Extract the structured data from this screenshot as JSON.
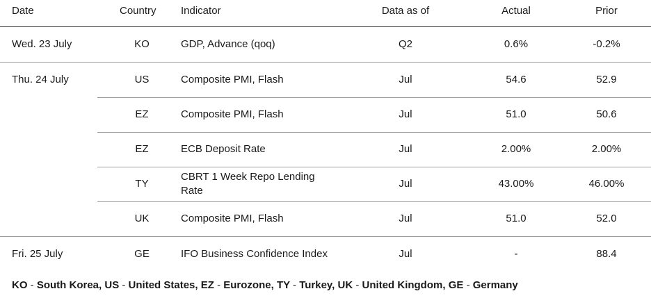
{
  "headers": {
    "date": "Date",
    "country": "Country",
    "indicator": "Indicator",
    "data_as_of": "Data as of",
    "actual": "Actual",
    "prior": "Prior"
  },
  "rows": [
    {
      "date": "Wed. 23 July",
      "country": "KO",
      "indicator": "GDP, Advance (qoq)",
      "data_as_of": "Q2",
      "actual": "0.6%",
      "prior": "-0.2%"
    },
    {
      "date": "Thu. 24 July",
      "country": "US",
      "indicator": "Composite PMI, Flash",
      "data_as_of": "Jul",
      "actual": "54.6",
      "prior": "52.9"
    },
    {
      "date": "",
      "country": "EZ",
      "indicator": "Composite PMI, Flash",
      "data_as_of": "Jul",
      "actual": "51.0",
      "prior": "50.6"
    },
    {
      "date": "",
      "country": "EZ",
      "indicator": "ECB Deposit Rate",
      "data_as_of": "Jul",
      "actual": "2.00%",
      "prior": "2.00%"
    },
    {
      "date": "",
      "country": "TY",
      "indicator_line1": "CBRT 1 Week Repo Lending",
      "indicator_line2": "Rate",
      "data_as_of": "Jul",
      "actual": "43.00%",
      "prior": "46.00%"
    },
    {
      "date": "",
      "country": "UK",
      "indicator": "Composite PMI, Flash",
      "data_as_of": "Jul",
      "actual": "51.0",
      "prior": "52.0"
    },
    {
      "date": "Fri. 25 July",
      "country": "GE",
      "indicator": "IFO Business Confidence Index",
      "data_as_of": "Jul",
      "actual": "-",
      "prior": "88.4"
    }
  ],
  "footnote": {
    "ko": "KO",
    "ko_name": "South Korea,",
    "us": "US",
    "us_name": "United States,",
    "ez": "EZ",
    "ez_name": "Eurozone,",
    "ty": "TY",
    "ty_name": "Turkey,",
    "uk": "UK",
    "uk_name": "United Kingdom,",
    "ge": "GE",
    "ge_name": "Germany",
    "dash": "-"
  }
}
